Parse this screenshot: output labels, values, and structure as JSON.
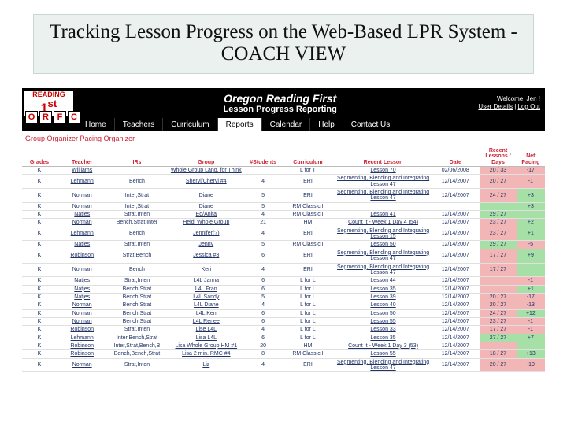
{
  "title": {
    "line": "Tracking Lesson Progress on the Web-Based LPR System - COACH VIEW"
  },
  "app": {
    "logo": {
      "word": "READING",
      "big": "1",
      "ord": "st"
    },
    "orfc": [
      "O",
      "R",
      "F",
      "C"
    ],
    "heading": "Oregon Reading First",
    "subheading": "Lesson Progress Reporting",
    "welcome": {
      "line1": "Welcome, Jen !",
      "details": "User Details",
      "sep": " | ",
      "logout": "Log Out"
    },
    "nav": [
      "Home",
      "Teachers",
      "Curriculum",
      "Reports",
      "Calendar",
      "Help",
      "Contact Us"
    ],
    "nav_active": 3,
    "crumbs": "Group Organizer  Pacing Organizer",
    "columns": [
      "Grades",
      "Teacher",
      "IRs",
      "Group",
      "#Students",
      "Curriculum",
      "Recent Lesson",
      "Date",
      "Recent Lessons / Days",
      "Net Pacing"
    ],
    "rows": [
      {
        "g": "K",
        "t": "Williams",
        "ir": "",
        "grp": "Whole Group Lang. for Think",
        "stu": "",
        "curr": "L for T",
        "les": "Lesson 70",
        "date": "02/06/2008",
        "days": "20 / 33",
        "dcls": "pink",
        "pace": "-17",
        "pcls": "pink"
      },
      {
        "g": "K",
        "t": "Lehmann",
        "ir": "Bench",
        "grp": "Sheryl/Cheryl #4",
        "stu": "4",
        "curr": "ERI",
        "les": "Segmenting, Blending and Integrating  Lesson 47",
        "date": "12/14/2007",
        "days": "20 / 27",
        "dcls": "pink",
        "pace": "-1",
        "pcls": "pink"
      },
      {
        "g": "K",
        "t": "Norman",
        "ir": "Inter,Strat",
        "grp": "Diane",
        "stu": "5",
        "curr": "ERI",
        "les": "Segmenting, Blending and Integrating  Lesson 47",
        "date": "12/14/2007",
        "days": "24 / 27",
        "dcls": "pink",
        "pace": "+3",
        "pcls": "green"
      },
      {
        "g": "K",
        "t": "Norman",
        "ir": "Inter,Strat",
        "grp": "Diane",
        "stu": "5",
        "curr": "RM Classic I",
        "les": "",
        "date": "",
        "days": "",
        "dcls": "green",
        "pace": "+3",
        "pcls": "green"
      },
      {
        "g": "K",
        "t": "Natjes",
        "ir": "Strat,Inten",
        "grp": "Ed/Anita",
        "stu": "4",
        "curr": "RM Classic I",
        "les": "Lesson 41",
        "date": "12/14/2007",
        "days": "29 / 27",
        "dcls": "green",
        "pace": "",
        "pcls": "green"
      },
      {
        "g": "K",
        "t": "Norman",
        "ir": "Bench,Strat,Inter",
        "grp": "Heidi Whole Group",
        "stu": "21",
        "curr": "HM",
        "les": "Count It - Week 1 Day 4 (54)",
        "date": "12/14/2007",
        "days": "23 / 27",
        "dcls": "pink",
        "pace": "+2",
        "pcls": "green"
      },
      {
        "g": "K",
        "t": "Lehmann",
        "ir": "Bench",
        "grp": "Jennifer(?)",
        "stu": "4",
        "curr": "ERI",
        "les": "Segmenting, Blending and Integrating  Lesson 15",
        "date": "12/14/2007",
        "days": "23 / 27",
        "dcls": "pink",
        "pace": "+1",
        "pcls": "green"
      },
      {
        "g": "K",
        "t": "Natjes",
        "ir": "Strat,Inten",
        "grp": "Jenny",
        "stu": "5",
        "curr": "RM Classic I",
        "les": "Lesson 50",
        "date": "12/14/2007",
        "days": "29 / 27",
        "dcls": "green",
        "pace": "-5",
        "pcls": "pink"
      },
      {
        "g": "K",
        "t": "Robinson",
        "ir": "Strat,Bench",
        "grp": "Jessica #3",
        "stu": "6",
        "curr": "ERI",
        "les": "Segmenting, Blending and Integrating  Lesson 47",
        "date": "12/14/2007",
        "days": "17 / 27",
        "dcls": "pink",
        "pace": "+9",
        "pcls": "green"
      },
      {
        "g": "K",
        "t": "Norman",
        "ir": "Bench",
        "grp": "Keri",
        "stu": "4",
        "curr": "ERI",
        "les": "Segmenting, Blending and Integrating  Lesson 47",
        "date": "12/14/2007",
        "days": "17 / 27",
        "dcls": "pink",
        "pace": "",
        "pcls": "green"
      },
      {
        "g": "K",
        "t": "Natjes",
        "ir": "Strat,Inten",
        "grp": "L4L Janna",
        "stu": "6",
        "curr": "L for L",
        "les": "Lesson 44",
        "date": "12/14/2007",
        "days": "",
        "dcls": "pink",
        "pace": "-1",
        "pcls": "pink"
      },
      {
        "g": "K",
        "t": "Natjes",
        "ir": "Bench,Strat",
        "grp": "L4L Fran",
        "stu": "6",
        "curr": "L for L",
        "les": "Lesson 35",
        "date": "12/14/2007",
        "days": "",
        "dcls": "pink",
        "pace": "+1",
        "pcls": "green"
      },
      {
        "g": "K",
        "t": "Natjes",
        "ir": "Bench,Strat",
        "grp": "L4L Sandy",
        "stu": "5",
        "curr": "L for L",
        "les": "Lesson 39",
        "date": "12/14/2007",
        "days": "20 / 27",
        "dcls": "pink",
        "pace": "-17",
        "pcls": "pink"
      },
      {
        "g": "K",
        "t": "Norman",
        "ir": "Bench,Strat",
        "grp": "L4L Diane",
        "stu": "4",
        "curr": "L for L",
        "les": "Lesson 40",
        "date": "12/14/2007",
        "days": "20 / 27",
        "dcls": "pink",
        "pace": "-13",
        "pcls": "pink"
      },
      {
        "g": "K",
        "t": "Norman",
        "ir": "Bench,Strat",
        "grp": "L4L Ken",
        "stu": "6",
        "curr": "L for L",
        "les": "Lesson 50",
        "date": "12/14/2007",
        "days": "24 / 27",
        "dcls": "pink",
        "pace": "+12",
        "pcls": "green"
      },
      {
        "g": "K",
        "t": "Norman",
        "ir": "Bench,Strat",
        "grp": "L4L Renee",
        "stu": "6",
        "curr": "L for L",
        "les": "Lesson 55",
        "date": "12/14/2007",
        "days": "23 / 27",
        "dcls": "pink",
        "pace": "-1",
        "pcls": "pink"
      },
      {
        "g": "K",
        "t": "Robinson",
        "ir": "Strat,Inten",
        "grp": "Lise L4L",
        "stu": "4",
        "curr": "L for L",
        "les": "Lesson 33",
        "date": "12/14/2007",
        "days": "17 / 27",
        "dcls": "pink",
        "pace": "-1",
        "pcls": "pink"
      },
      {
        "g": "K",
        "t": "Lehmann",
        "ir": "Inter,Bench,Strat",
        "grp": "Lisa L4L",
        "stu": "6",
        "curr": "L for L",
        "les": "Lesson 35",
        "date": "12/14/2007",
        "days": "27 / 27",
        "dcls": "green",
        "pace": "+7",
        "pcls": "green"
      },
      {
        "g": "K",
        "t": "Robinson",
        "ir": "Inter,Strat,Bench,B",
        "grp": "Lisa Whole Group HM #1",
        "stu": "20",
        "curr": "HM",
        "les": "Count It - Week 1 Day 3 (53)",
        "date": "12/14/2007",
        "days": "",
        "dcls": "pink",
        "pace": "",
        "pcls": "green"
      },
      {
        "g": "K",
        "t": "Robinson",
        "ir": "Bench,Bench,Strat",
        "grp": "Lisa 2 min. RMC #4",
        "stu": "8",
        "curr": "RM Classic I",
        "les": "Lesson 55",
        "date": "12/14/2007",
        "days": "18 / 27",
        "dcls": "pink",
        "pace": "+13",
        "pcls": "green"
      },
      {
        "g": "K",
        "t": "Norman",
        "ir": "Strat,Inten",
        "grp": "Liz",
        "stu": "4",
        "curr": "ERI",
        "les": "Segmenting, Blending and Integrating  Lesson 47",
        "date": "12/14/2007",
        "days": "20 / 27",
        "dcls": "pink",
        "pace": "-10",
        "pcls": "pink"
      }
    ],
    "colors": {
      "green": "#a6e0a6",
      "pink": "#f3b6b6",
      "headerText": "#c23",
      "linkText": "#236"
    }
  }
}
